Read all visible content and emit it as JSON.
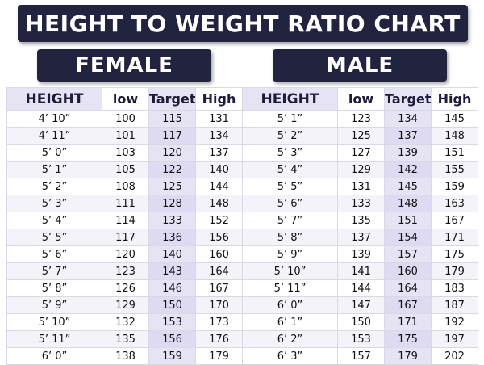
{
  "title": "HEIGHT TO WEIGHT RATIO CHART",
  "female": {
    "label": "FEMALE",
    "headers": {
      "height": "HEIGHT",
      "low": "low",
      "target": "Target",
      "high": "High"
    },
    "rows": [
      {
        "height": "4’ 10”",
        "low": "100",
        "target": "115",
        "high": "131"
      },
      {
        "height": "4’ 11”",
        "low": "101",
        "target": "117",
        "high": "134"
      },
      {
        "height": "5’ 0”",
        "low": "103",
        "target": "120",
        "high": "137"
      },
      {
        "height": "5’ 1”",
        "low": "105",
        "target": "122",
        "high": "140"
      },
      {
        "height": "5’ 2”",
        "low": "108",
        "target": "125",
        "high": "144"
      },
      {
        "height": "5’ 3”",
        "low": "111",
        "target": "128",
        "high": "148"
      },
      {
        "height": "5’ 4”",
        "low": "114",
        "target": "133",
        "high": "152"
      },
      {
        "height": "5’ 5”",
        "low": "117",
        "target": "136",
        "high": "156"
      },
      {
        "height": "5’ 6”",
        "low": "120",
        "target": "140",
        "high": "160"
      },
      {
        "height": "5’ 7”",
        "low": "123",
        "target": "143",
        "high": "164"
      },
      {
        "height": "5’ 8”",
        "low": "126",
        "target": "146",
        "high": "167"
      },
      {
        "height": "5’ 9”",
        "low": "129",
        "target": "150",
        "high": "170"
      },
      {
        "height": "5’ 10”",
        "low": "132",
        "target": "153",
        "high": "173"
      },
      {
        "height": "5’ 11”",
        "low": "135",
        "target": "156",
        "high": "176"
      },
      {
        "height": "6’ 0”",
        "low": "138",
        "target": "159",
        "high": "179"
      }
    ]
  },
  "male": {
    "label": "MALE",
    "headers": {
      "height": "HEIGHT",
      "low": "low",
      "target": "Target",
      "high": "High"
    },
    "rows": [
      {
        "height": "5’ 1”",
        "low": "123",
        "target": "134",
        "high": "145"
      },
      {
        "height": "5’ 2”",
        "low": "125",
        "target": "137",
        "high": "148"
      },
      {
        "height": "5’ 3”",
        "low": "127",
        "target": "139",
        "high": "151"
      },
      {
        "height": "5’ 4”",
        "low": "129",
        "target": "142",
        "high": "155"
      },
      {
        "height": "5’ 5”",
        "low": "131",
        "target": "145",
        "high": "159"
      },
      {
        "height": "5’ 6”",
        "low": "133",
        "target": "148",
        "high": "163"
      },
      {
        "height": "5’ 7”",
        "low": "135",
        "target": "151",
        "high": "167"
      },
      {
        "height": "5’ 8”",
        "low": "137",
        "target": "154",
        "high": "171"
      },
      {
        "height": "5’ 9”",
        "low": "139",
        "target": "157",
        "high": "175"
      },
      {
        "height": "5’ 10”",
        "low": "141",
        "target": "160",
        "high": "179"
      },
      {
        "height": "5’ 11”",
        "low": "144",
        "target": "164",
        "high": "183"
      },
      {
        "height": "6’ 0”",
        "low": "147",
        "target": "167",
        "high": "187"
      },
      {
        "height": "6’ 1”",
        "low": "150",
        "target": "171",
        "high": "192"
      },
      {
        "height": "6’ 2”",
        "low": "153",
        "target": "175",
        "high": "197"
      },
      {
        "height": "6’ 3”",
        "low": "157",
        "target": "179",
        "high": "202"
      }
    ]
  },
  "colors": {
    "banner": "#22243f",
    "highlight": "#e6e3f5",
    "text": "#111111"
  }
}
